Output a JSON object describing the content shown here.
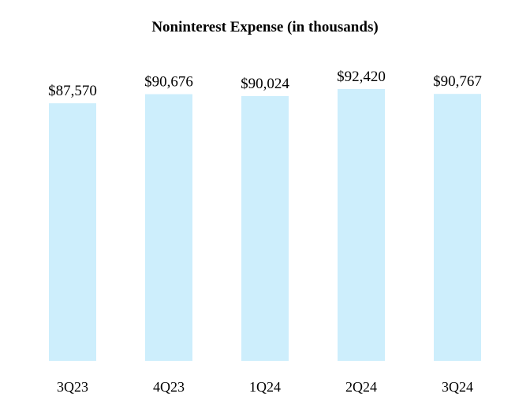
{
  "chart_data": {
    "type": "bar",
    "title": "Noninterest Expense (in thousands)",
    "categories": [
      "3Q23",
      "4Q23",
      "1Q24",
      "2Q24",
      "3Q24"
    ],
    "values": [
      87570,
      90676,
      90024,
      92420,
      90767
    ],
    "data_labels": [
      "$87,570",
      "$90,676",
      "$90,024",
      "$92,420",
      "$90,767"
    ],
    "xlabel": "",
    "ylabel": "",
    "ylim": [
      0,
      92420
    ],
    "grid": false,
    "legend": "none",
    "bar_color": "#cdeefc",
    "text_color": "#000000"
  }
}
